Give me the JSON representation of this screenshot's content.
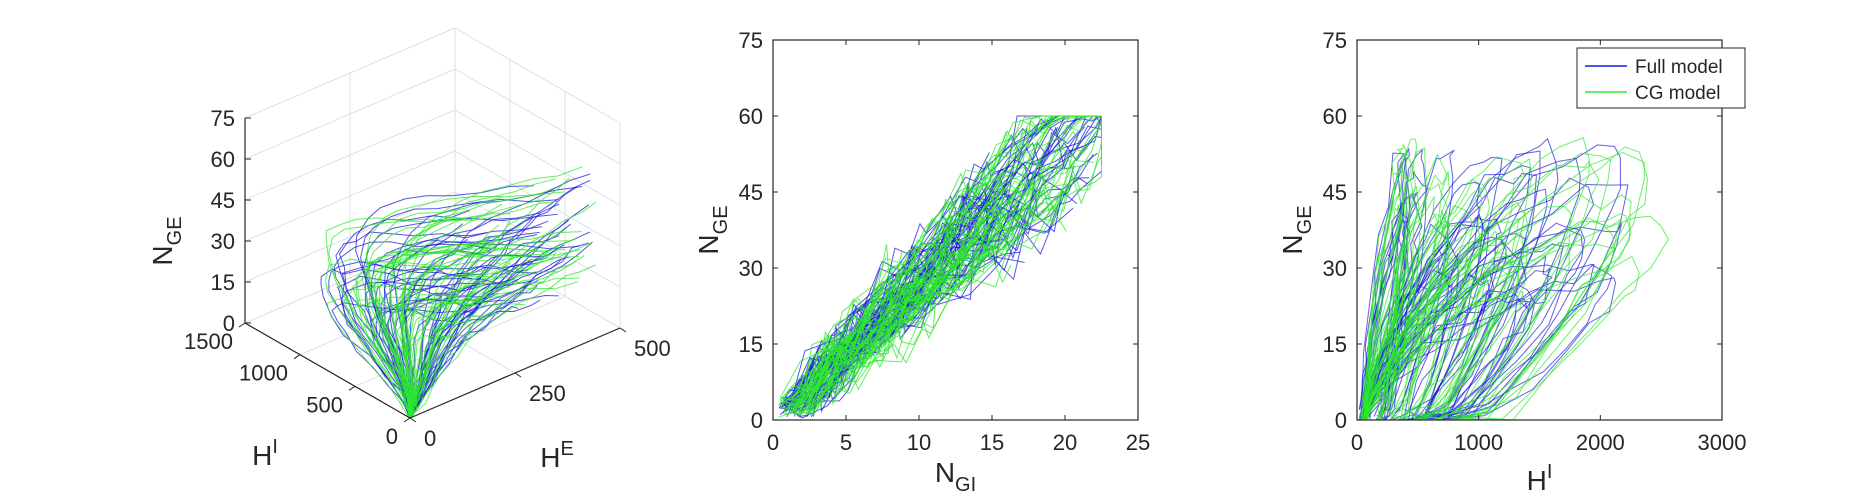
{
  "colors": {
    "full_model": "#1c1cdc",
    "cg_model": "#2ee82e",
    "axis": "#262626",
    "grid": "#dfdfdf"
  },
  "chart_data": [
    {
      "type": "line",
      "subtype": "3d-trajectories",
      "title": "",
      "axes": {
        "z": {
          "label": "N",
          "label_sub": "GE",
          "range": [
            0,
            75
          ],
          "ticks": [
            0,
            15,
            30,
            45,
            60,
            75
          ]
        },
        "hi": {
          "label": "H",
          "label_sup": "I",
          "range": [
            0,
            1500
          ],
          "ticks": [
            0,
            500,
            1000,
            1500
          ]
        },
        "he": {
          "label": "H",
          "label_sup": "E",
          "range": [
            0,
            500
          ],
          "ticks": [
            0,
            250,
            500
          ]
        }
      },
      "grid": true,
      "series": [
        {
          "color_key": "full_model",
          "trajectories": 60
        },
        {
          "color_key": "cg_model",
          "trajectories": 60
        }
      ]
    },
    {
      "type": "line",
      "subtype": "2d-trajectories",
      "title": "",
      "xlabel": "N",
      "xlabel_sub": "GI",
      "ylabel": "N",
      "ylabel_sub": "GE",
      "xlim": [
        0,
        25
      ],
      "ylim": [
        0,
        75
      ],
      "xticks": [
        0,
        5,
        10,
        15,
        20,
        25
      ],
      "yticks": [
        0,
        15,
        30,
        45,
        60,
        75
      ],
      "grid": false,
      "series": [
        {
          "color_key": "full_model",
          "trajectories": 60
        },
        {
          "color_key": "cg_model",
          "trajectories": 60
        }
      ]
    },
    {
      "type": "line",
      "subtype": "2d-trajectories",
      "title": "",
      "xlabel": "H",
      "xlabel_sup": "I",
      "ylabel": "N",
      "ylabel_sub": "GE",
      "xlim": [
        0,
        3000
      ],
      "ylim": [
        0,
        75
      ],
      "xticks": [
        0,
        1000,
        2000,
        3000
      ],
      "yticks": [
        0,
        15,
        30,
        45,
        60,
        75
      ],
      "grid": false,
      "legend": {
        "position": "top-right",
        "entries": [
          {
            "label": "Full model",
            "color_key": "full_model"
          },
          {
            "label": "CG model",
            "color_key": "cg_model"
          }
        ]
      },
      "series": [
        {
          "name": "Full model",
          "color_key": "full_model",
          "trajectories": 50
        },
        {
          "name": "CG model",
          "color_key": "cg_model",
          "trajectories": 50
        }
      ]
    }
  ]
}
